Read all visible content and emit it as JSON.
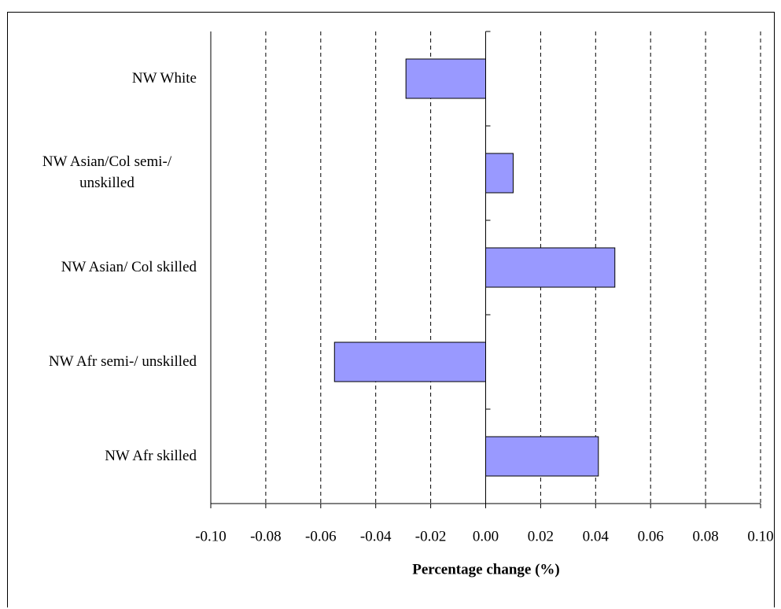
{
  "chart_data": {
    "type": "hbar",
    "x_label": "Percentage change (%)",
    "categories": [
      "NW White",
      "NW Asian/Col semi-/ unskilled",
      "NW Asian/ Col skilled",
      "NW Afr semi-/ unskilled",
      "NW Afr skilled"
    ],
    "values": [
      -0.029,
      0.01,
      0.047,
      -0.055,
      0.041
    ],
    "color": "#9999ff",
    "xlim": [
      -0.1,
      0.1
    ],
    "xticks": [
      {
        "value": -0.1,
        "label": "-0.10"
      },
      {
        "value": -0.08,
        "label": "-0.08"
      },
      {
        "value": -0.06,
        "label": "-0.06"
      },
      {
        "value": -0.04,
        "label": "-0.04"
      },
      {
        "value": -0.02,
        "label": "-0.02"
      },
      {
        "value": 0,
        "label": "0.00"
      },
      {
        "value": 0.02,
        "label": "0.02"
      },
      {
        "value": 0.04,
        "label": "0.04"
      },
      {
        "value": 0.06,
        "label": "0.06"
      },
      {
        "value": 0.08,
        "label": "0.08"
      },
      {
        "value": 0.1,
        "label": "0.10"
      }
    ],
    "grid": true
  }
}
